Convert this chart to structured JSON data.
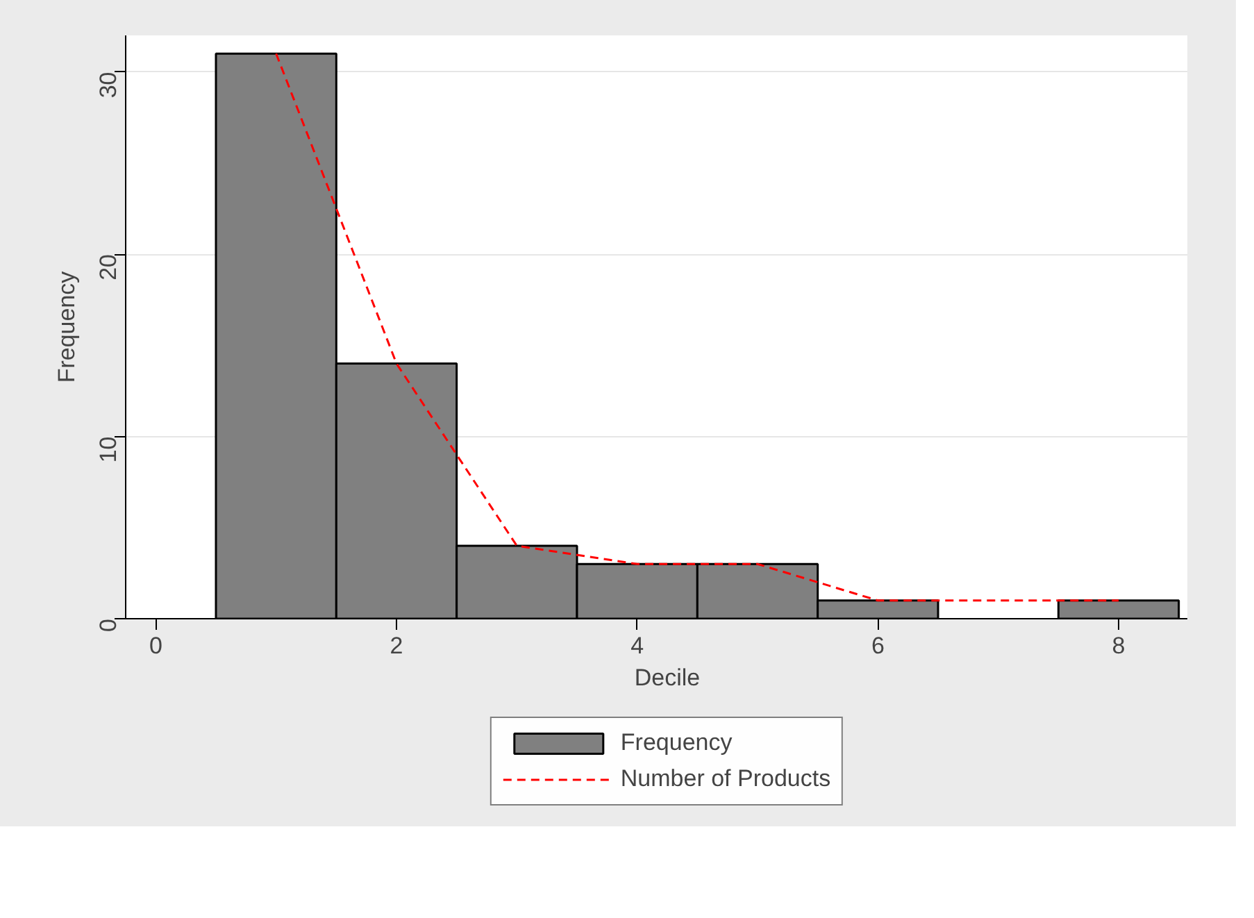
{
  "chart_data": {
    "type": "histogram",
    "xlabel": "Decile",
    "ylabel": "Frequency",
    "bins": [
      0.5,
      1.5,
      2.5,
      3.5,
      4.5,
      5.5,
      6.5,
      7.5,
      8.5
    ],
    "series": [
      {
        "name": "Frequency",
        "type": "histogram",
        "color": "#808080",
        "values": [
          31,
          14,
          4,
          3,
          3,
          1,
          0,
          1
        ]
      },
      {
        "name": "Number of Products",
        "type": "line",
        "color": "#ff0000",
        "line_style": "dashed",
        "x": [
          1,
          2,
          3,
          4,
          5,
          6,
          7,
          8
        ],
        "values": [
          31,
          14,
          4,
          3,
          3,
          1,
          1,
          1
        ]
      }
    ],
    "xlim": [
      -0.25,
      8.75
    ],
    "ylim": [
      0,
      32
    ],
    "xticks": [
      0,
      2,
      4,
      6,
      8
    ],
    "yticks": [
      0,
      10,
      20,
      30
    ],
    "grid": "y",
    "legend": "bottom"
  }
}
